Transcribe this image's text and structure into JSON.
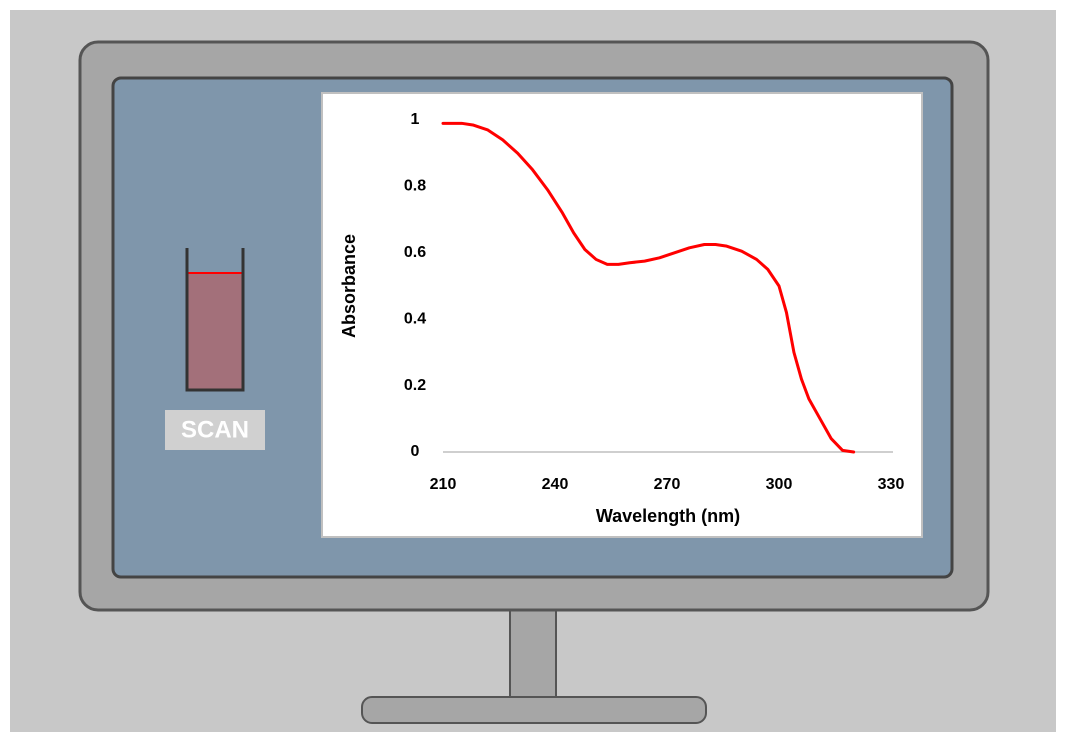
{
  "scan_button": {
    "label": "SCAN"
  },
  "chart_data": {
    "type": "line",
    "x_label": "Wavelength (nm)",
    "y_label": "Absorbance",
    "x": [
      210,
      215,
      218,
      222,
      226,
      230,
      234,
      238,
      242,
      245,
      248,
      251,
      254,
      257,
      260,
      264,
      268,
      272,
      276,
      280,
      283,
      286,
      290,
      294,
      297,
      300,
      302,
      304,
      306,
      308,
      311,
      314,
      317,
      320
    ],
    "series": [
      {
        "name": "Absorbance",
        "color": "#ff0000",
        "values": [
          0.99,
          0.99,
          0.985,
          0.97,
          0.94,
          0.9,
          0.85,
          0.79,
          0.72,
          0.66,
          0.61,
          0.58,
          0.565,
          0.565,
          0.57,
          0.575,
          0.585,
          0.6,
          0.615,
          0.625,
          0.625,
          0.62,
          0.605,
          0.58,
          0.55,
          0.5,
          0.42,
          0.3,
          0.22,
          0.16,
          0.1,
          0.04,
          0.005,
          0
        ]
      }
    ],
    "xlim": [
      210,
      330
    ],
    "xticks": [
      210,
      240,
      270,
      300,
      330
    ],
    "ylim": [
      0,
      1
    ],
    "yticks": [
      0,
      0.2,
      0.4,
      0.6,
      0.8,
      1
    ],
    "grid": false
  }
}
